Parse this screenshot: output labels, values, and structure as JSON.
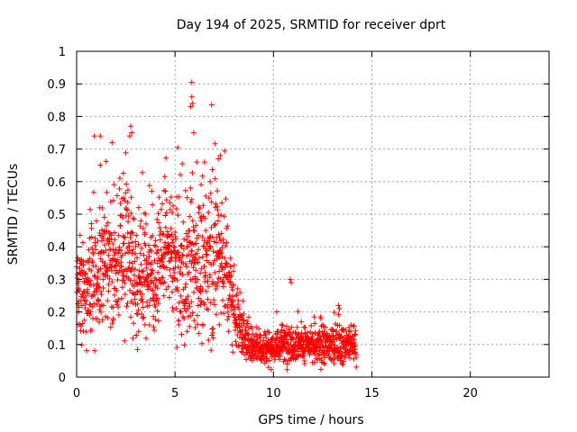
{
  "chart_data": {
    "type": "scatter",
    "title": "Day 194 of 2025, SRMTID for receiver dprt",
    "xlabel": "GPS time / hours",
    "ylabel": "SRMTID / TECUs",
    "xlim": [
      0,
      24
    ],
    "ylim": [
      0,
      1
    ],
    "xticks": [
      0,
      5,
      10,
      15,
      20
    ],
    "yticks": [
      0,
      0.1,
      0.2,
      0.3,
      0.4,
      0.5,
      0.6,
      0.7,
      0.8,
      0.9,
      1
    ],
    "xtick_labels": [
      "0",
      "5",
      "10",
      "15",
      "20"
    ],
    "ytick_labels": [
      "0",
      "0.1",
      "0.2",
      "0.3",
      "0.4",
      "0.5",
      "0.6",
      "0.7",
      "0.8",
      "0.9",
      "1"
    ],
    "grid": true,
    "marker": "+",
    "marker_color": "#ff0000",
    "series": [
      {
        "name": "SRMTID",
        "trend": [
          {
            "x": 0.0,
            "y": 0.28,
            "spread": 0.09
          },
          {
            "x": 0.5,
            "y": 0.25,
            "spread": 0.1
          },
          {
            "x": 1.0,
            "y": 0.33,
            "spread": 0.14
          },
          {
            "x": 1.5,
            "y": 0.36,
            "spread": 0.14
          },
          {
            "x": 2.0,
            "y": 0.32,
            "spread": 0.12
          },
          {
            "x": 2.5,
            "y": 0.42,
            "spread": 0.16
          },
          {
            "x": 3.0,
            "y": 0.3,
            "spread": 0.12
          },
          {
            "x": 3.5,
            "y": 0.33,
            "spread": 0.12
          },
          {
            "x": 4.0,
            "y": 0.3,
            "spread": 0.1
          },
          {
            "x": 4.5,
            "y": 0.4,
            "spread": 0.11
          },
          {
            "x": 5.0,
            "y": 0.36,
            "spread": 0.12
          },
          {
            "x": 5.5,
            "y": 0.3,
            "spread": 0.14
          },
          {
            "x": 6.0,
            "y": 0.36,
            "spread": 0.15
          },
          {
            "x": 6.5,
            "y": 0.32,
            "spread": 0.14
          },
          {
            "x": 7.0,
            "y": 0.4,
            "spread": 0.16
          },
          {
            "x": 7.5,
            "y": 0.36,
            "spread": 0.14
          },
          {
            "x": 8.0,
            "y": 0.22,
            "spread": 0.08
          },
          {
            "x": 8.5,
            "y": 0.12,
            "spread": 0.05
          },
          {
            "x": 9.0,
            "y": 0.1,
            "spread": 0.035
          },
          {
            "x": 10.0,
            "y": 0.09,
            "spread": 0.035
          },
          {
            "x": 11.0,
            "y": 0.11,
            "spread": 0.04
          },
          {
            "x": 12.0,
            "y": 0.09,
            "spread": 0.035
          },
          {
            "x": 13.0,
            "y": 0.1,
            "spread": 0.04
          },
          {
            "x": 14.2,
            "y": 0.1,
            "spread": 0.035
          }
        ],
        "outliers": [
          {
            "x": 5.85,
            "y": 0.905
          },
          {
            "x": 5.85,
            "y": 0.86
          },
          {
            "x": 5.8,
            "y": 0.83
          },
          {
            "x": 5.9,
            "y": 0.84
          },
          {
            "x": 2.75,
            "y": 0.77
          },
          {
            "x": 2.8,
            "y": 0.75
          },
          {
            "x": 2.7,
            "y": 0.74
          },
          {
            "x": 0.9,
            "y": 0.74
          },
          {
            "x": 1.2,
            "y": 0.74
          },
          {
            "x": 1.8,
            "y": 0.72
          },
          {
            "x": 5.95,
            "y": 0.75
          },
          {
            "x": 7.3,
            "y": 0.68
          },
          {
            "x": 7.2,
            "y": 0.67
          },
          {
            "x": 6.5,
            "y": 0.66
          },
          {
            "x": 10.85,
            "y": 0.3
          },
          {
            "x": 10.9,
            "y": 0.29
          },
          {
            "x": 13.3,
            "y": 0.22
          },
          {
            "x": 13.35,
            "y": 0.21
          },
          {
            "x": 9.75,
            "y": 0.03
          }
        ],
        "x_range": [
          0.0,
          14.2
        ],
        "n_points": 1700
      }
    ]
  }
}
